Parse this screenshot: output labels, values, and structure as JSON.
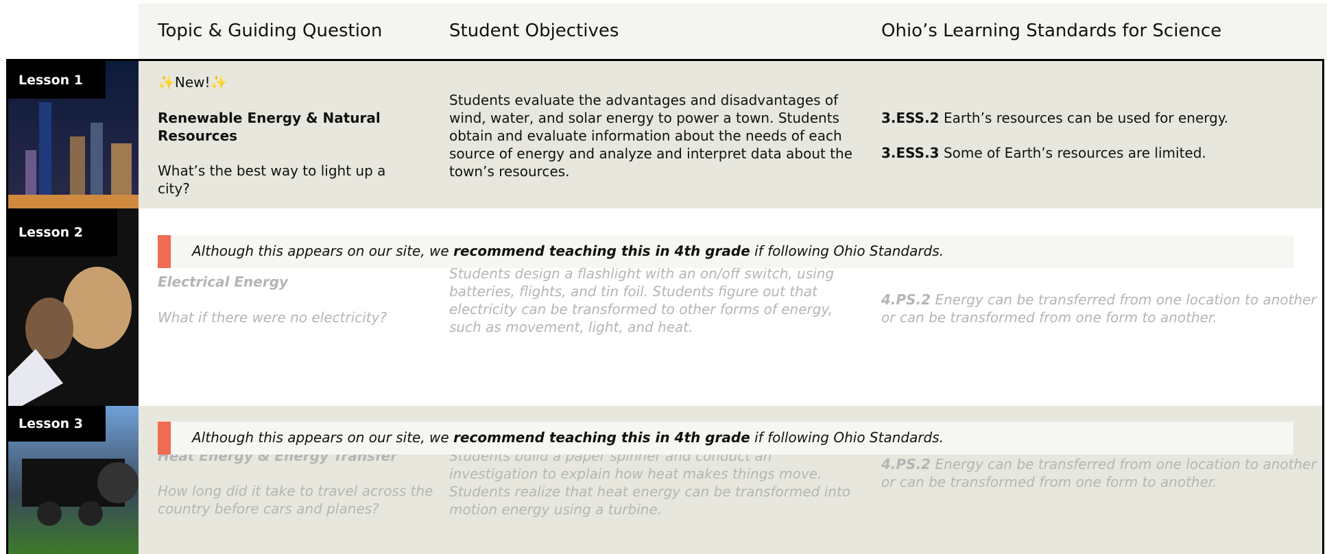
{
  "header": {
    "columns": [
      "Topic & Guiding Question",
      "Student Objectives",
      "Ohio’s Learning Standards for Science"
    ]
  },
  "lessons": [
    {
      "label": "Lesson 1",
      "badge": "✨New!✨",
      "topic": "Renewable Energy & Natural Resources",
      "question": "What’s the best way to light up a city?",
      "objectives": "Students evaluate the advantages and disadvantages of wind, water, and solar energy to power a town. Students obtain and evaluate information about the needs of each source of energy and analyze and interpret data about the town’s resources.",
      "standards": [
        {
          "code": "3.ESS.2",
          "text": " Earth’s resources can be used for energy."
        },
        {
          "code": "3.ESS.3",
          "text": " Some of Earth’s resources are limited."
        }
      ]
    },
    {
      "label": "Lesson 2",
      "notice": [
        "Although this appears on our site, we ",
        "recommend teaching this in 4th grade",
        " if following Ohio Standards."
      ],
      "topic": "Electrical Energy",
      "question": "What if there were no electricity?",
      "objectives": "Students design a flashlight with an on/off switch, using batteries, flights, and tin foil. Students figure out that electricity can be transformed to other forms of energy, such as movement, light, and heat.",
      "standards": [
        {
          "code": "4.PS.2",
          "text": " Energy can be transferred from one location to another or can be transformed from one form to another."
        }
      ]
    },
    {
      "label": "Lesson 3",
      "notice": [
        "Although this appears on our site, we ",
        "recommend teaching this in 4th grade",
        " if following Ohio Standards."
      ],
      "topic": "Heat Energy & Energy Transfer",
      "question": "How long did it take to travel across the country before cars and planes?",
      "objectives": "Students build a paper spinner and conduct an investigation to explain how heat makes things move. Students realize that heat energy can be transformed into motion energy using a turbine.",
      "standards": [
        {
          "code": "4.PS.2",
          "text": " Energy can be transferred from one location to another or can be transformed from one form to another."
        }
      ]
    }
  ]
}
